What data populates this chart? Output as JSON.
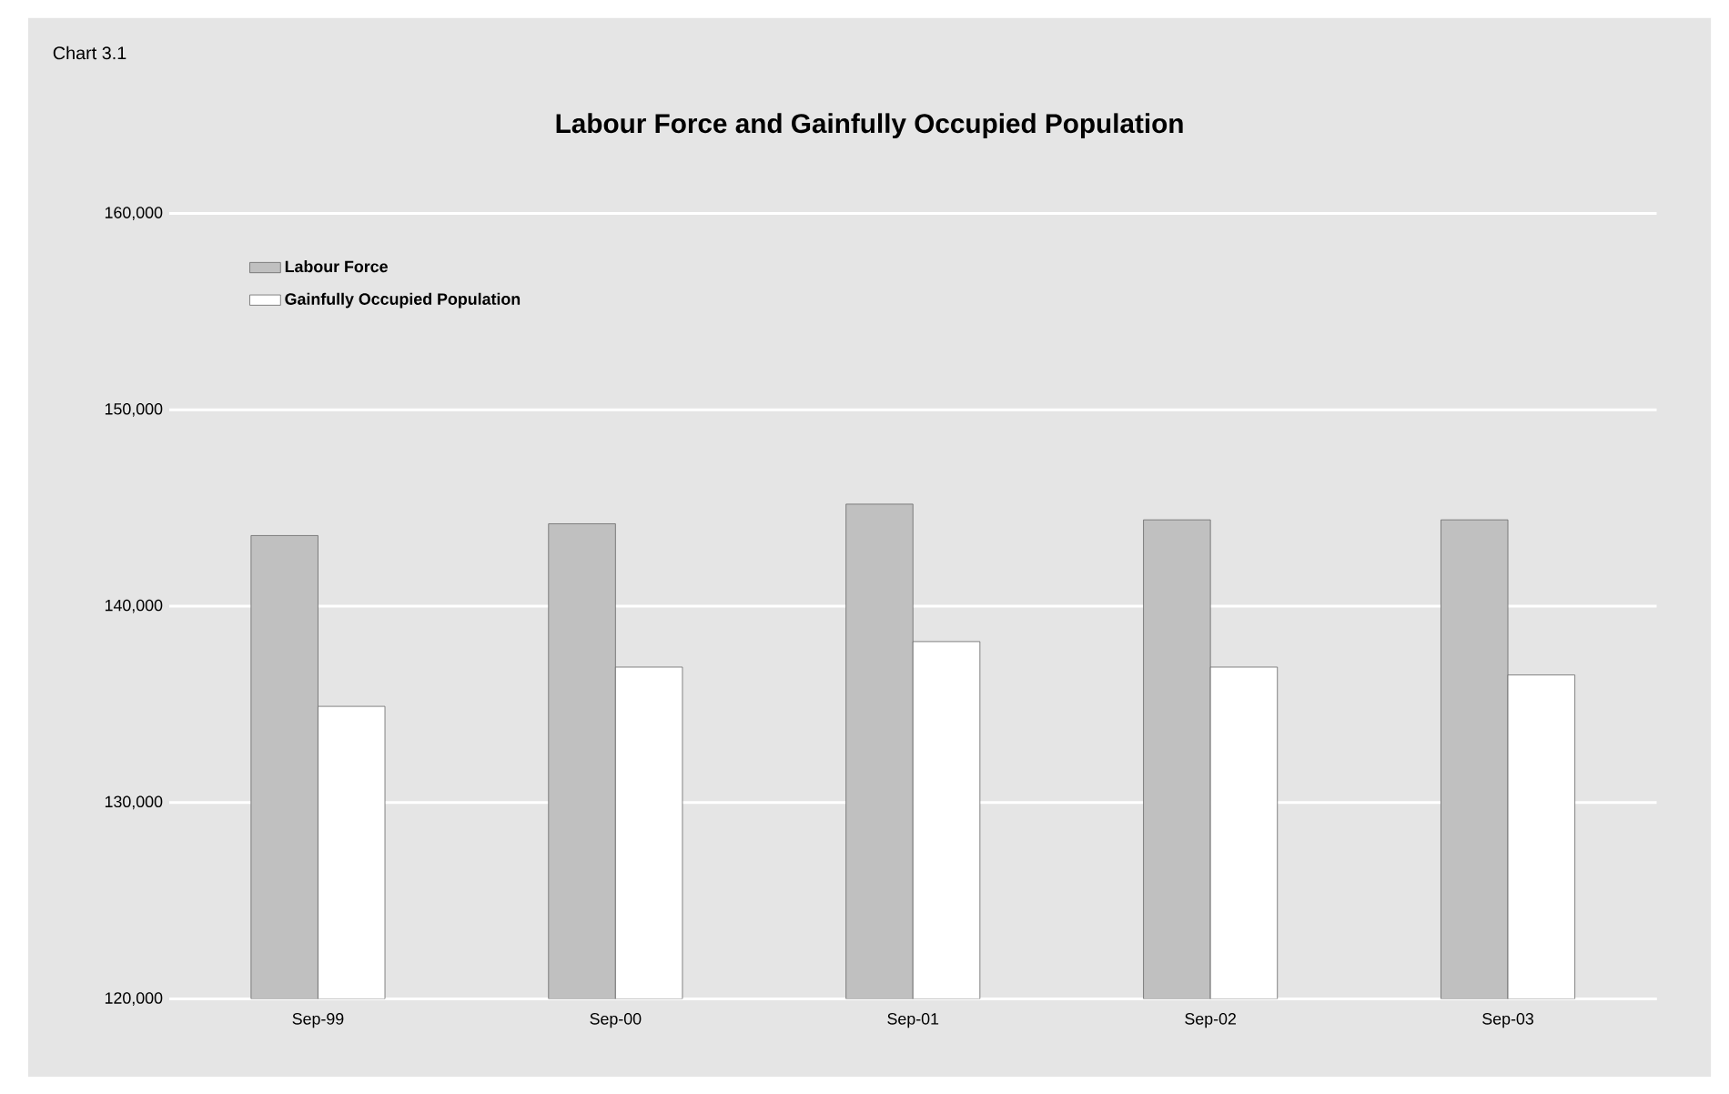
{
  "chart_data": {
    "type": "bar",
    "title": "Labour Force and Gainfully Occupied Population",
    "annotations": [
      "Chart 3.1"
    ],
    "categories": [
      "Sep-99",
      "Sep-00",
      "Sep-01",
      "Sep-02",
      "Sep-03"
    ],
    "series": [
      {
        "name": "Labour Force",
        "color": "#c0c0c0",
        "values": [
          143600,
          144200,
          145200,
          144400,
          144400
        ]
      },
      {
        "name": "Gainfully Occupied Population",
        "color": "#ffffff",
        "values": [
          134900,
          136900,
          138200,
          136900,
          136500
        ]
      }
    ],
    "ylim": [
      120000,
      160000
    ],
    "yticks": [
      {
        "value": 120000,
        "label": "120,000"
      },
      {
        "value": 130000,
        "label": "130,000"
      },
      {
        "value": 140000,
        "label": "140,000"
      },
      {
        "value": 150000,
        "label": "150,000"
      },
      {
        "value": 160000,
        "label": "160,000"
      }
    ],
    "grid": "y",
    "legend": "top left"
  }
}
